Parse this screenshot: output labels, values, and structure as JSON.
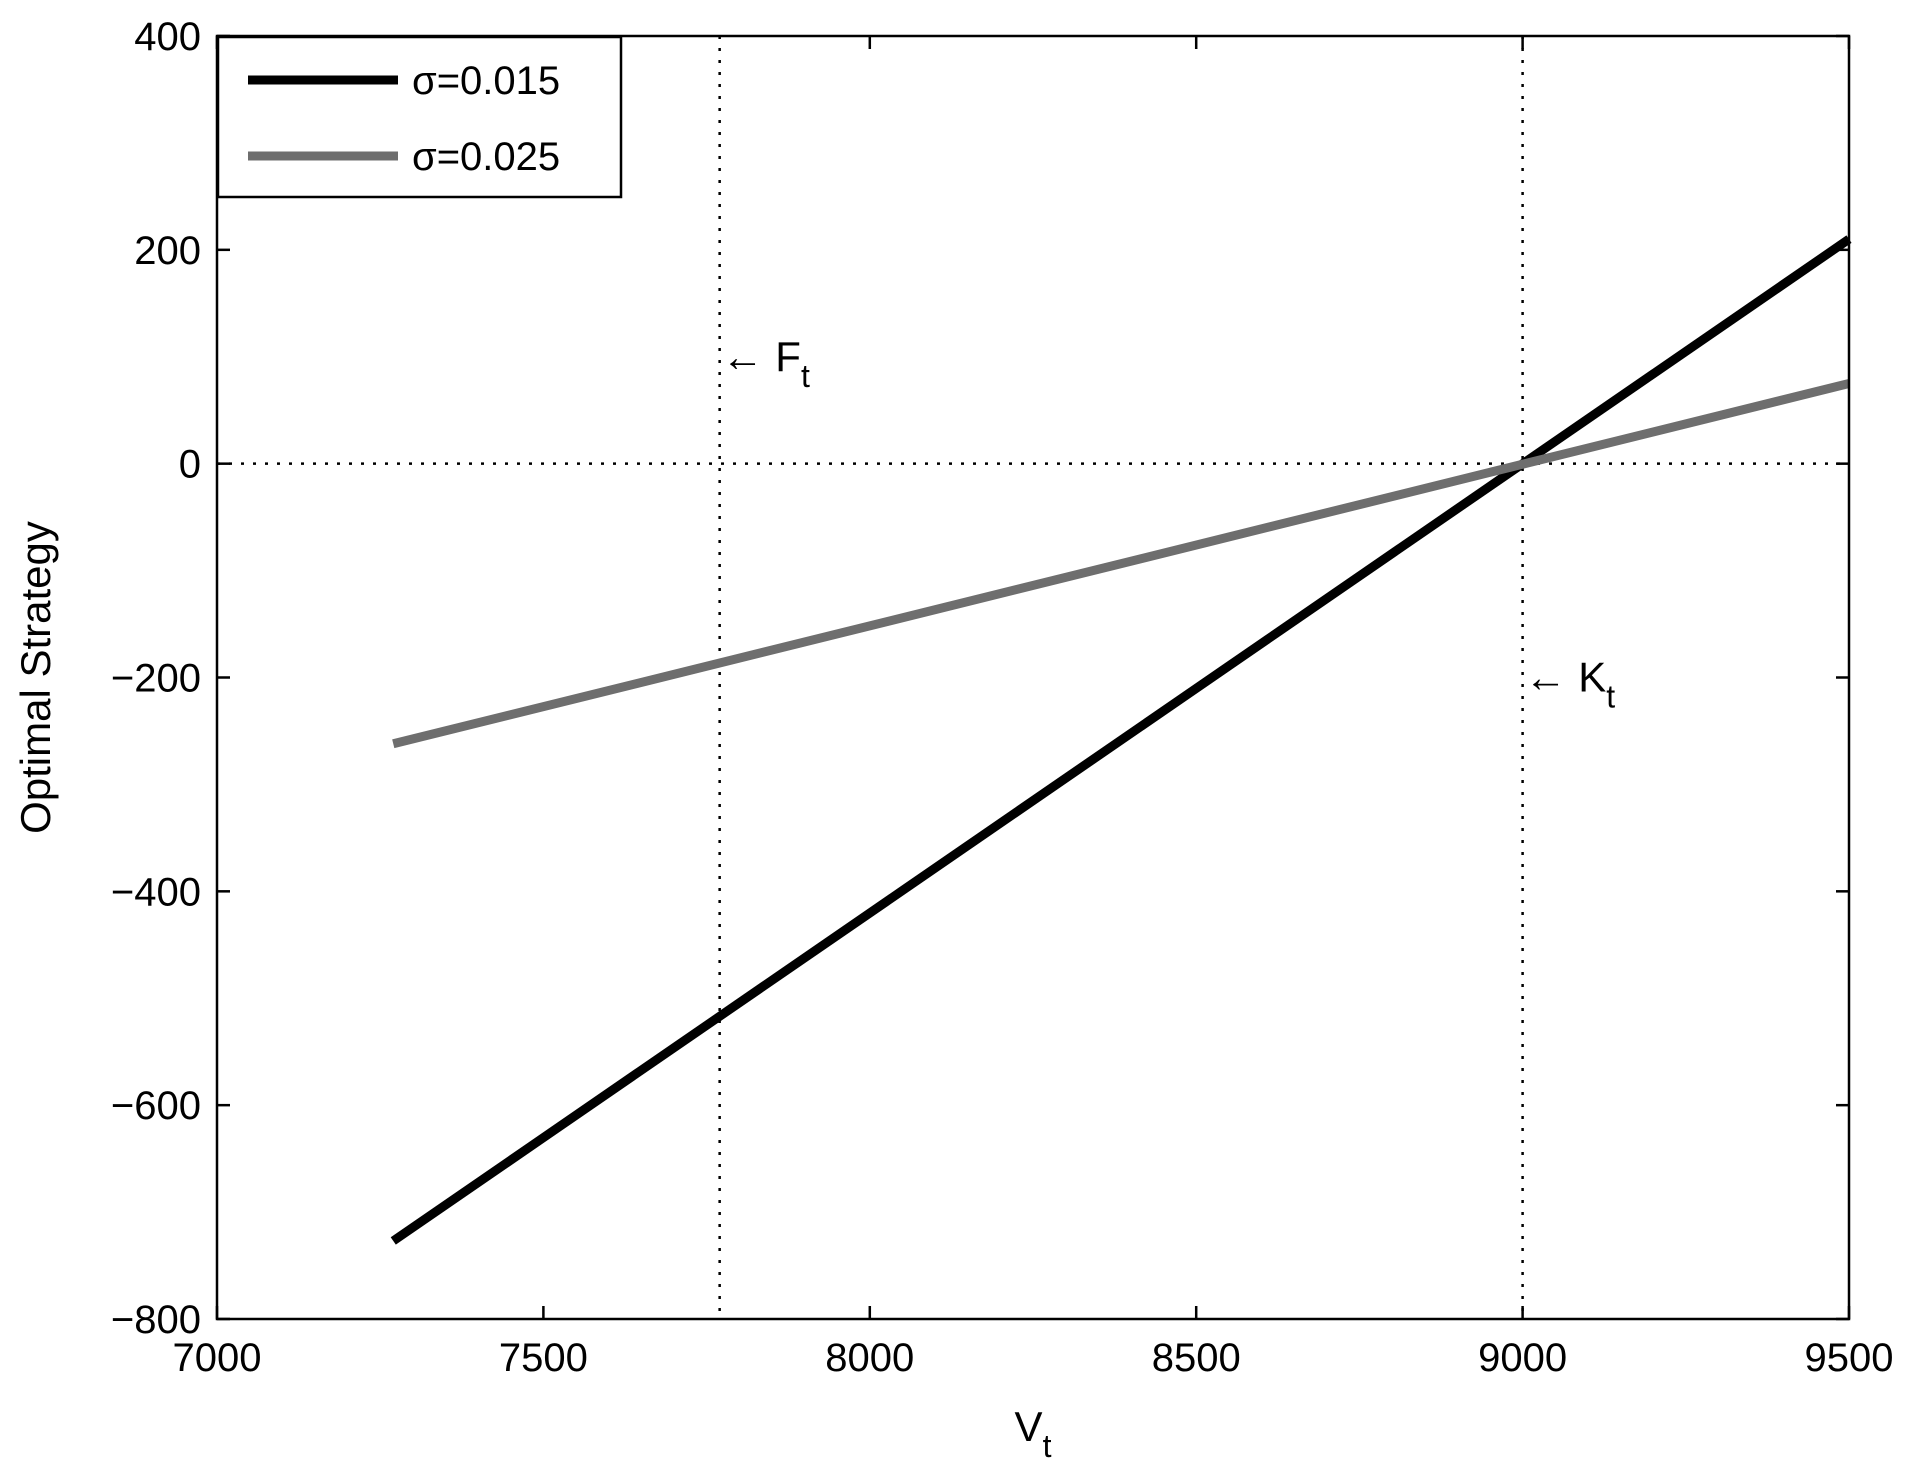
{
  "chart_data": {
    "type": "line",
    "title": "",
    "xlabel": "V",
    "xlabel_sub": "t",
    "ylabel": "Optimal Strategy",
    "xlim": [
      7000,
      9500
    ],
    "ylim": [
      -800,
      400
    ],
    "xticks": [
      7000,
      7500,
      8000,
      8500,
      9000,
      9500
    ],
    "yticks": [
      -800,
      -600,
      -400,
      -200,
      0,
      200,
      400
    ],
    "xtick_labels": [
      "7000",
      "7500",
      "8000",
      "8500",
      "9000",
      "9500"
    ],
    "ytick_labels": [
      "−800",
      "−600",
      "−400",
      "−200",
      "0",
      "200",
      "400"
    ],
    "grid": false,
    "legend_position": "top-left",
    "series": [
      {
        "name": "σ=0.015",
        "color": "#000000",
        "x": [
          7270,
          9500
        ],
        "y": [
          -727,
          210
        ]
      },
      {
        "name": "σ=0.025",
        "color": "#6e6e6e",
        "x": [
          7270,
          9500
        ],
        "y": [
          -262,
          75
        ]
      }
    ],
    "reference_lines": [
      {
        "orientation": "vertical",
        "x": 7770,
        "style": "dotted"
      },
      {
        "orientation": "vertical",
        "x": 9000,
        "style": "dotted"
      },
      {
        "orientation": "horizontal",
        "y": 0,
        "style": "dotted"
      }
    ],
    "annotations": [
      {
        "arrow": "←",
        "text": "F",
        "sub": "t",
        "x": 7770,
        "y": 100
      },
      {
        "arrow": "←",
        "text": "K",
        "sub": "t",
        "x": 9000,
        "y": -200
      }
    ]
  }
}
